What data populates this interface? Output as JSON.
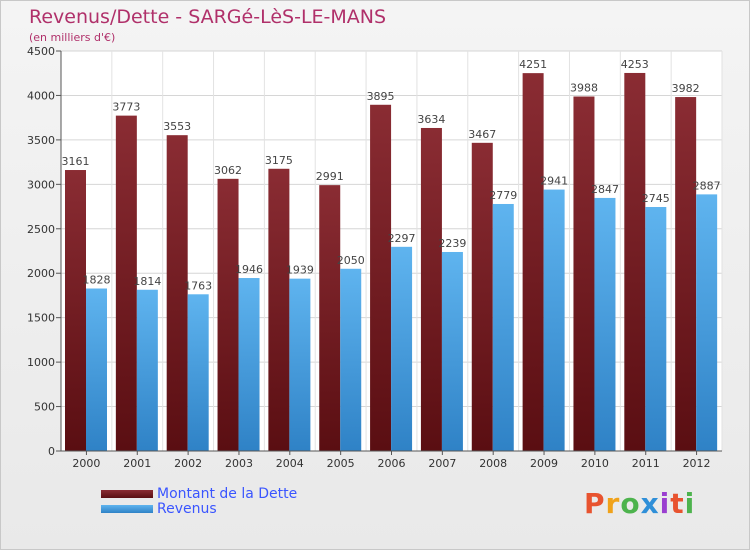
{
  "header": {
    "title": "Revenus/Dette - SARGé-LèS-LE-MANS",
    "subtitle": "(en milliers d'€)"
  },
  "legend": {
    "dette_label": "Montant de la Dette",
    "revenus_label": "Revenus"
  },
  "logo": {
    "text": "Proxiti"
  },
  "colors": {
    "dette": "#7a1f24",
    "revenus": "#4aa3e3",
    "title": "#b0306a",
    "legend_text": "#3a55ff"
  },
  "chart_data": {
    "type": "bar",
    "title": "Revenus/Dette - SARGé-LèS-LE-MANS",
    "subtitle": "(en milliers d'€)",
    "categories": [
      "2000",
      "2001",
      "2002",
      "2003",
      "2004",
      "2005",
      "2006",
      "2007",
      "2008",
      "2009",
      "2010",
      "2011",
      "2012"
    ],
    "series": [
      {
        "name": "Montant de la Dette",
        "values": [
          3161,
          3773,
          3553,
          3062,
          3175,
          2991,
          3895,
          3634,
          3467,
          4251,
          3988,
          4253,
          3982
        ]
      },
      {
        "name": "Revenus",
        "values": [
          1828,
          1814,
          1763,
          1946,
          1939,
          2050,
          2297,
          2239,
          2779,
          2941,
          2847,
          2745,
          2887
        ]
      }
    ],
    "ylim": [
      0,
      4500
    ],
    "yticks": [
      0,
      500,
      1000,
      1500,
      2000,
      2500,
      3000,
      3500,
      4000,
      4500
    ],
    "grid": true,
    "legend_position": "bottom-left"
  }
}
